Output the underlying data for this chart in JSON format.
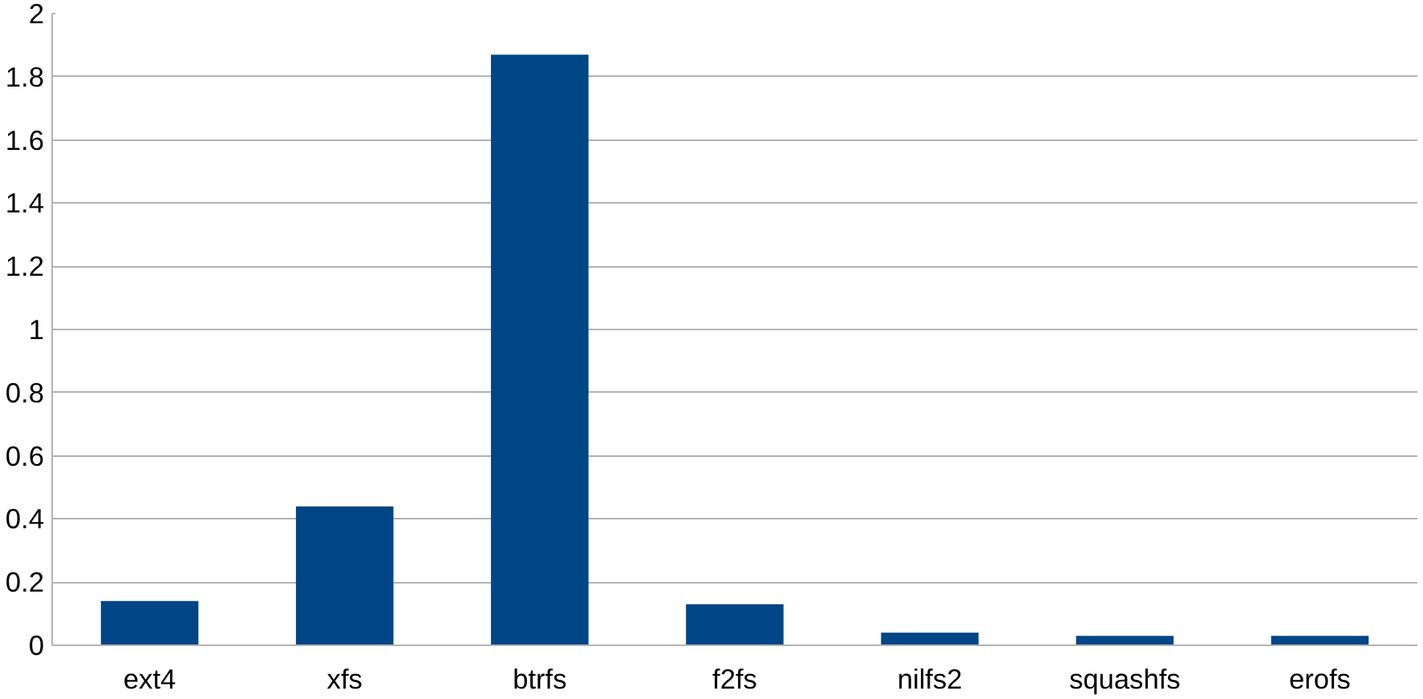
{
  "chart_data": {
    "type": "bar",
    "categories": [
      "ext4",
      "xfs",
      "btrfs",
      "f2fs",
      "nilfs2",
      "squashfs",
      "erofs"
    ],
    "values": [
      0.14,
      0.44,
      1.87,
      0.13,
      0.04,
      0.03,
      0.03
    ],
    "color": "#004586",
    "ylim": [
      0,
      2
    ],
    "yticks": [
      0,
      {
        "value": 0.2,
        "label": "0.2"
      },
      {
        "value": 0.4,
        "label": "0.4"
      },
      {
        "value": 0.6,
        "label": "0.6"
      },
      {
        "value": 0.8,
        "label": "0.8"
      },
      1,
      {
        "value": 1.2,
        "label": "1.2"
      },
      {
        "value": 1.4,
        "label": "1.4"
      },
      {
        "value": 1.6,
        "label": "1.6"
      },
      {
        "value": 1.8,
        "label": "1.8"
      },
      2
    ],
    "grid": "y"
  }
}
